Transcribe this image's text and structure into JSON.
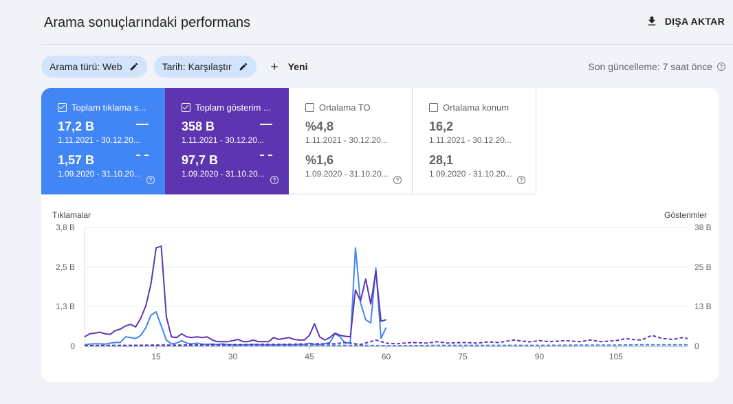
{
  "header": {
    "title": "Arama sonuçlarındaki performans",
    "export_label": "DIŞA AKTAR"
  },
  "filters": {
    "search_type": "Arama türü: Web",
    "date": "Tarih: Karşılaştır",
    "new_label": "Yeni",
    "last_update": "Son güncelleme: 7 saat önce"
  },
  "metrics": [
    {
      "label": "Toplam tıklama s...",
      "checked": true,
      "value1": "17,2 B",
      "date1": "1.11.2021 - 30.12.20...",
      "value2": "1,57 B",
      "date2": "1.09.2020 - 31.10.20...",
      "color": "#4285f4"
    },
    {
      "label": "Toplam gösterim ...",
      "checked": true,
      "value1": "358 B",
      "date1": "1.11.2021 - 30.12.20...",
      "value2": "97,7 B",
      "date2": "1.09.2020 - 31.10.20...",
      "color": "#5e35b1"
    },
    {
      "label": "Ortalama TO",
      "checked": false,
      "value1": "%4,8",
      "date1": "1.11.2021 - 30.12.20...",
      "value2": "%1,6",
      "date2": "1.09.2020 - 31.10.20..."
    },
    {
      "label": "Ortalama konum",
      "checked": false,
      "value1": "16,2",
      "date1": "1.11.2021 - 30.12.20...",
      "value2": "28,1",
      "date2": "1.09.2020 - 31.10.20..."
    }
  ],
  "chart_data": {
    "type": "line",
    "ylabel_left": "Tıklamalar",
    "ylabel_right": "Gösterimler",
    "y_ticks_left": [
      "0",
      "1,3 B",
      "2,5 B",
      "3,8 B"
    ],
    "y_ticks_right": [
      "0",
      "13 B",
      "25 B",
      "38 B"
    ],
    "y_tick_values": [
      0,
      1.27,
      2.53,
      3.8
    ],
    "x_ticks": [
      15,
      30,
      45,
      60,
      75,
      90,
      105
    ],
    "xlim": [
      1,
      119
    ],
    "ylim": [
      0,
      3.8
    ],
    "grid": true,
    "series": [
      {
        "style": "solid",
        "color": "#4285f4",
        "x": [
          1,
          2,
          3,
          4,
          5,
          6,
          7,
          8,
          9,
          10,
          11,
          12,
          13,
          14,
          15,
          16,
          17,
          18,
          19,
          20,
          21,
          22,
          23,
          24,
          25,
          26,
          27,
          28,
          29,
          30,
          31,
          32,
          33,
          34,
          35,
          36,
          37,
          38,
          39,
          40,
          41,
          42,
          43,
          44,
          45,
          46,
          47,
          48,
          49,
          50,
          51,
          52,
          53,
          54,
          55,
          56,
          57,
          58,
          59,
          60
        ],
        "y": [
          0.05,
          0.07,
          0.08,
          0.08,
          0.07,
          0.1,
          0.12,
          0.12,
          0.3,
          0.28,
          0.25,
          0.35,
          0.6,
          1.0,
          1.1,
          0.65,
          0.2,
          0.08,
          0.1,
          0.18,
          0.1,
          0.08,
          0.1,
          0.07,
          0.06,
          0.07,
          0.05,
          0.08,
          0.05,
          0.05,
          0.04,
          0.05,
          0.05,
          0.06,
          0.05,
          0.04,
          0.05,
          0.04,
          0.05,
          0.05,
          0.05,
          0.04,
          0.06,
          0.05,
          0.1,
          0.06,
          0.05,
          0.08,
          0.12,
          0.4,
          0.3,
          0.1,
          0.12,
          3.15,
          1.4,
          0.85,
          0.75,
          2.5,
          0.25,
          0.6
        ]
      },
      {
        "style": "solid",
        "color": "#5e35b1",
        "x": [
          1,
          2,
          3,
          4,
          5,
          6,
          7,
          8,
          9,
          10,
          11,
          12,
          13,
          14,
          15,
          16,
          17,
          18,
          19,
          20,
          21,
          22,
          23,
          24,
          25,
          26,
          27,
          28,
          29,
          30,
          31,
          32,
          33,
          34,
          35,
          36,
          37,
          38,
          39,
          40,
          41,
          42,
          43,
          44,
          45,
          46,
          47,
          48,
          49,
          50,
          51,
          52,
          53,
          54,
          55,
          56,
          57,
          58,
          59,
          60
        ],
        "y": [
          0.3,
          0.4,
          0.42,
          0.45,
          0.4,
          0.38,
          0.5,
          0.55,
          0.65,
          0.7,
          0.62,
          0.9,
          1.3,
          2.0,
          3.15,
          3.2,
          0.95,
          0.3,
          0.28,
          0.4,
          0.3,
          0.28,
          0.3,
          0.28,
          0.3,
          0.2,
          0.15,
          0.15,
          0.15,
          0.18,
          0.22,
          0.15,
          0.15,
          0.2,
          0.15,
          0.15,
          0.15,
          0.28,
          0.22,
          0.25,
          0.28,
          0.22,
          0.2,
          0.2,
          0.35,
          0.72,
          0.3,
          0.2,
          0.28,
          0.42,
          0.35,
          0.32,
          0.3,
          1.8,
          1.45,
          2.15,
          1.35,
          2.4,
          0.8,
          0.85
        ]
      },
      {
        "style": "dashed",
        "color": "#4285f4",
        "x": [
          1,
          10,
          20,
          30,
          40,
          45,
          50,
          55,
          60,
          65,
          70,
          80,
          90,
          100,
          105,
          110,
          115,
          119
        ],
        "y": [
          0.02,
          0.02,
          0.02,
          0.02,
          0.02,
          0.03,
          0.03,
          0.03,
          0.02,
          0.02,
          0.03,
          0.03,
          0.03,
          0.04,
          0.04,
          0.05,
          0.05,
          0.05
        ]
      },
      {
        "style": "dashed",
        "color": "#5e35b1",
        "x": [
          1,
          5,
          10,
          15,
          20,
          25,
          30,
          35,
          40,
          45,
          50,
          52,
          55,
          57,
          58,
          60,
          62,
          65,
          68,
          70,
          72,
          75,
          78,
          80,
          82,
          85,
          88,
          90,
          92,
          95,
          98,
          100,
          102,
          105,
          107,
          108,
          110,
          112,
          114,
          116,
          118,
          119
        ],
        "y": [
          0.02,
          0.03,
          0.03,
          0.04,
          0.04,
          0.05,
          0.05,
          0.06,
          0.06,
          0.08,
          0.08,
          0.12,
          0.06,
          0.15,
          0.2,
          0.1,
          0.08,
          0.12,
          0.1,
          0.15,
          0.1,
          0.12,
          0.1,
          0.14,
          0.12,
          0.2,
          0.14,
          0.18,
          0.15,
          0.18,
          0.15,
          0.2,
          0.15,
          0.18,
          0.25,
          0.22,
          0.2,
          0.35,
          0.25,
          0.22,
          0.28,
          0.25
        ]
      }
    ]
  }
}
